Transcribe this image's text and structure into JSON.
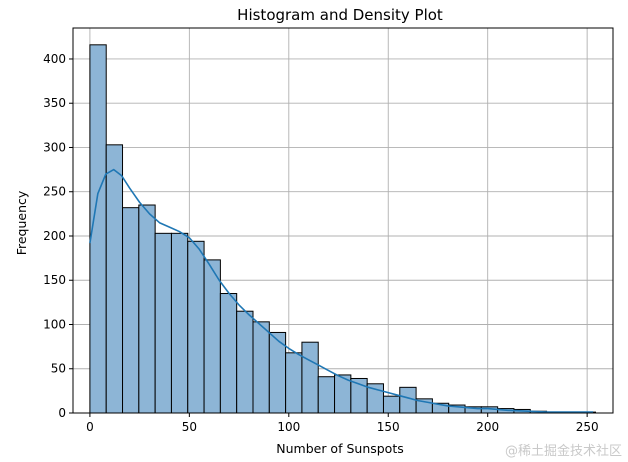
{
  "chart_data": {
    "type": "bar",
    "title": "Histogram and Density Plot",
    "xlabel": "Number of Sunspots",
    "ylabel": "Frequency",
    "xlim": [
      -8.5,
      263
    ],
    "ylim": [
      0,
      435
    ],
    "x_ticks": [
      0,
      50,
      100,
      150,
      200,
      250
    ],
    "y_ticks": [
      0,
      50,
      100,
      150,
      200,
      250,
      300,
      350,
      400
    ],
    "grid": true,
    "bin_width": 8.2,
    "bins_start": 0,
    "values": [
      416,
      303,
      232,
      235,
      203,
      203,
      194,
      173,
      135,
      115,
      103,
      91,
      68,
      80,
      41,
      43,
      39,
      33,
      19,
      29,
      16,
      11,
      9,
      7,
      7,
      5,
      4,
      2,
      1,
      1,
      1
    ],
    "density": {
      "name": "",
      "x": [
        0,
        4,
        8,
        12,
        16,
        20,
        25,
        30,
        35,
        40,
        45,
        50,
        55,
        60,
        65,
        70,
        75,
        80,
        85,
        90,
        95,
        100,
        105,
        110,
        115,
        120,
        125,
        130,
        135,
        140,
        145,
        150,
        155,
        160,
        165,
        170,
        175,
        180,
        185,
        190,
        195,
        200,
        205,
        210,
        220,
        230,
        240,
        250,
        253
      ],
      "y": [
        192,
        248,
        270,
        275,
        268,
        254,
        238,
        225,
        215,
        210,
        205,
        198,
        185,
        168,
        150,
        135,
        122,
        111,
        101,
        91,
        81,
        73,
        66,
        60,
        54,
        48,
        42,
        37,
        33,
        29,
        26,
        23,
        20,
        17,
        14,
        12,
        10,
        8,
        7,
        6,
        5,
        5,
        4,
        3,
        2,
        1,
        1,
        1,
        1
      ]
    },
    "colors": {
      "bar_fill": "#8db5d6",
      "bar_edge": "#000000",
      "kde_line": "#1f77b4",
      "grid": "#b0b0b0"
    }
  },
  "watermark": "@稀土掘金技术社区"
}
